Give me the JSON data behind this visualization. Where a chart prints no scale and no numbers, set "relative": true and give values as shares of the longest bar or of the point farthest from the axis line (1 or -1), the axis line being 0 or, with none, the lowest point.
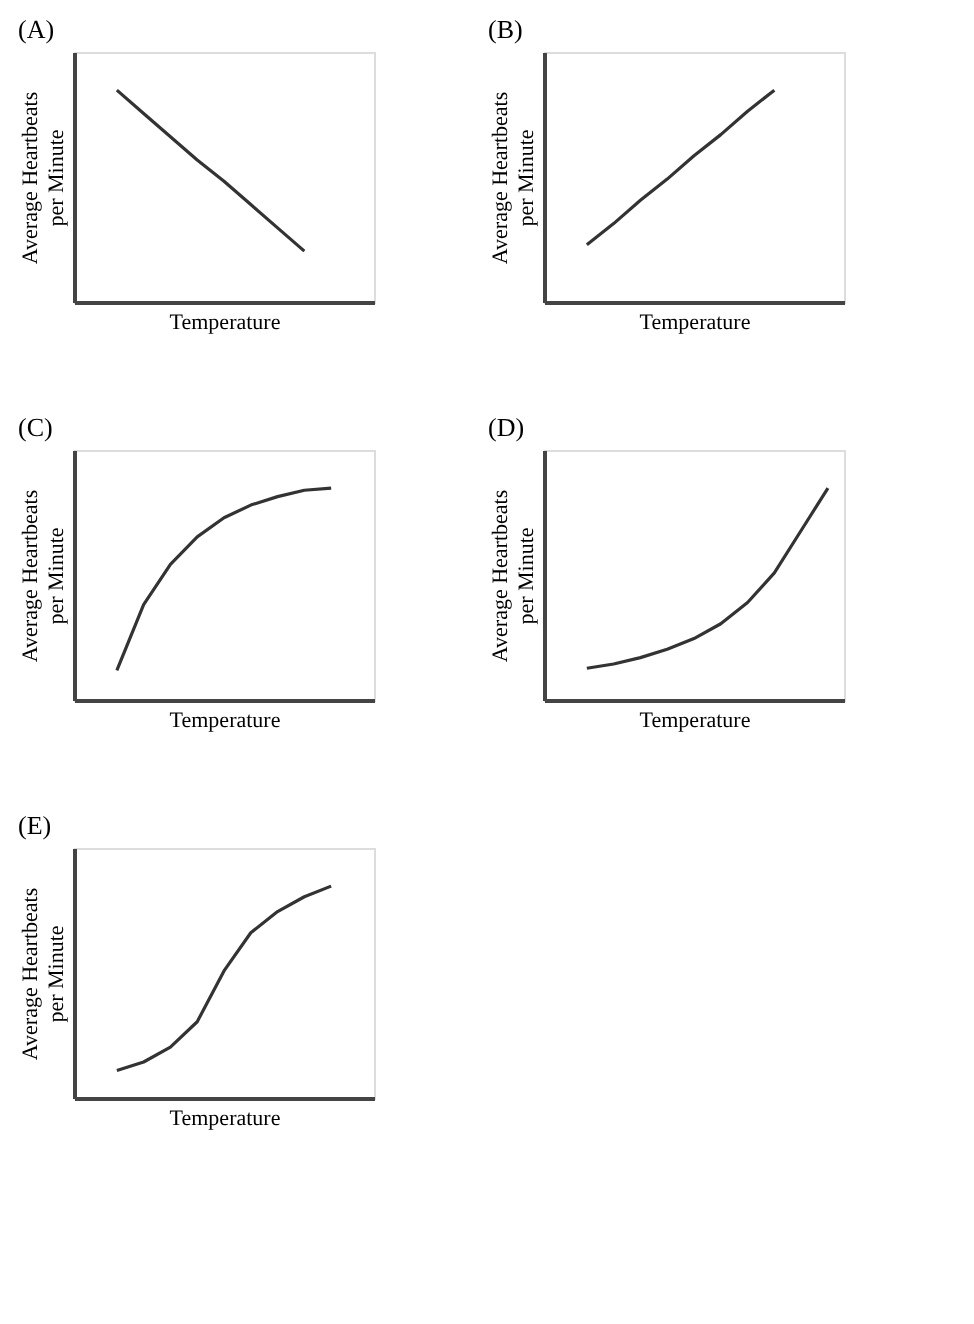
{
  "chart_data": [
    {
      "type": "line",
      "title": "(A)",
      "xlabel": "Temperature",
      "ylabel": "Average Heartbeats per Minute",
      "relative": true,
      "categories": [
        null,
        null,
        null,
        null,
        null,
        null,
        null,
        null,
        null,
        null,
        null
      ],
      "series": [
        {
          "color": "#333333",
          "values": [
            null,
            1,
            0.89,
            0.78,
            0.67,
            0.57,
            0.46,
            0.35,
            0.24,
            null,
            null
          ]
        }
      ],
      "grid": false,
      "tick_labels": false
    },
    {
      "type": "line",
      "title": "(B)",
      "xlabel": "Temperature",
      "ylabel": "Average Heartbeats per Minute",
      "relative": true,
      "categories": [
        null,
        null,
        null,
        null,
        null,
        null,
        null,
        null,
        null,
        null,
        null
      ],
      "series": [
        {
          "color": "#333333",
          "values": [
            null,
            0.27,
            0.37,
            0.48,
            0.58,
            0.69,
            0.79,
            0.9,
            1,
            null,
            null
          ]
        }
      ],
      "grid": false,
      "tick_labels": false
    },
    {
      "type": "line",
      "title": "(C)",
      "xlabel": "Temperature",
      "ylabel": "Average Heartbeats per Minute",
      "relative": true,
      "categories": [
        null,
        null,
        null,
        null,
        null,
        null,
        null,
        null,
        null,
        null,
        null
      ],
      "series": [
        {
          "color": "#333333",
          "values": [
            null,
            0.14,
            0.45,
            0.64,
            0.77,
            0.86,
            0.92,
            0.96,
            0.99,
            1,
            null
          ]
        }
      ],
      "grid": false,
      "tick_labels": false
    },
    {
      "type": "line",
      "title": "(D)",
      "xlabel": "Temperature",
      "ylabel": "Average Heartbeats per Minute",
      "relative": true,
      "categories": [
        null,
        null,
        null,
        null,
        null,
        null,
        null,
        null,
        null,
        null,
        null
      ],
      "series": [
        {
          "color": "#333333",
          "values": [
            null,
            0.15,
            0.17,
            0.2,
            0.24,
            0.29,
            0.36,
            0.46,
            0.6,
            0.8,
            1
          ]
        }
      ],
      "grid": false,
      "tick_labels": false
    },
    {
      "type": "line",
      "title": "(E)",
      "xlabel": "Temperature",
      "ylabel": "Average Heartbeats per Minute",
      "relative": true,
      "categories": [
        null,
        null,
        null,
        null,
        null,
        null,
        null,
        null,
        null,
        null,
        null
      ],
      "series": [
        {
          "color": "#333333",
          "values": [
            null,
            0.13,
            0.17,
            0.24,
            0.36,
            0.6,
            0.78,
            0.88,
            0.95,
            1,
            null
          ]
        }
      ],
      "grid": false,
      "tick_labels": false
    }
  ]
}
